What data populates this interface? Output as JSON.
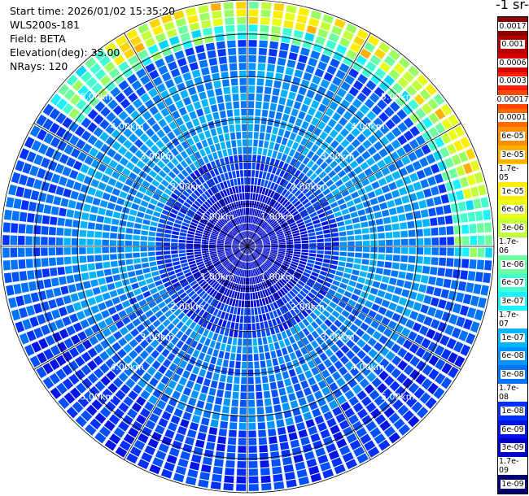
{
  "info": {
    "start_time": "Start time: 2026/01/02 15:35:20",
    "instrument": "WLS200s-181",
    "field": "Field: BETA",
    "elevation": "Elevation(deg): 35.00",
    "nrays": "NRays: 120"
  },
  "colorbar_title": "-1 sr-",
  "chart_data": {
    "type": "heatmap",
    "projection": "polar (PPI)",
    "field": "BETA",
    "n_rays": 120,
    "range_rings_km": [
      1,
      2,
      3,
      4,
      5
    ],
    "range_labels": [
      "1.00km",
      "2.00km",
      "3.00km",
      "4.00km",
      "5.00km"
    ],
    "max_range_km": 5.8,
    "colorbar": {
      "labels": [
        "0.0017",
        "0.001",
        "0.0006",
        "0.0003",
        "0.00017",
        "0.0001",
        "6e-05",
        "3e-05",
        "1.7e-05",
        "1e-05",
        "6e-06",
        "3e-06",
        "1.7e-06",
        "1e-06",
        "6e-07",
        "3e-07",
        "1.7e-07",
        "1e-07",
        "6e-08",
        "3e-08",
        "1.7e-08",
        "1e-08",
        "6e-09",
        "3e-09",
        "1.7e-09",
        "1e-09"
      ],
      "colors": [
        "#8b0000",
        "#b40000",
        "#d90000",
        "#ff1e00",
        "#ff4800",
        "#ff6a00",
        "#ff8e00",
        "#ffb000",
        "#ffd400",
        "#ffee00",
        "#e8ff1a",
        "#c4ff3b",
        "#9cff62",
        "#6effa0",
        "#44ffd0",
        "#1cf2ff",
        "#00d6ff",
        "#00b4ff",
        "#0096ff",
        "#0074ff",
        "#0050ff",
        "#0030ff",
        "#0014e8",
        "#0000c8",
        "#00009c",
        "#000070"
      ]
    },
    "background_levels": [
      {
        "range_km": [
          0.0,
          1.5
        ],
        "label": "1.7e-09 to 1e-08"
      },
      {
        "range_km": [
          1.5,
          4.3
        ],
        "label": "1e-08 to 1e-07"
      },
      {
        "range_km": [
          4.3,
          5.8
        ],
        "label": "1e-08 to 3e-08"
      }
    ]
  }
}
